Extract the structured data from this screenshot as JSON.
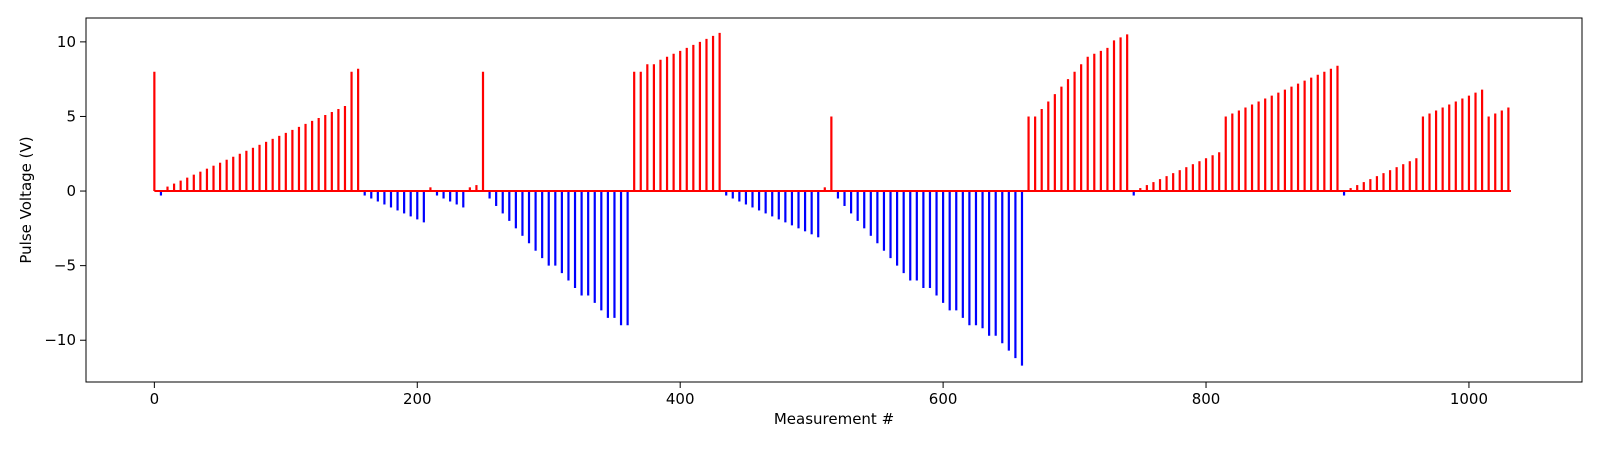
{
  "chart_data": {
    "type": "bar",
    "title": "",
    "xlabel": "Measurement #",
    "ylabel": "Pulse Voltage (V)",
    "xlim": [
      -52,
      1086
    ],
    "ylim": [
      -12.8,
      11.6
    ],
    "xticks": [
      0,
      200,
      400,
      600,
      800,
      1000
    ],
    "yticks": [
      -10,
      -5,
      0,
      5,
      10
    ],
    "grid": false,
    "legend": "none",
    "colors": {
      "positive": "#ff0000",
      "negative": "#0000ff",
      "baseline": "#ff0000"
    },
    "baseline": {
      "x_start": 0,
      "x_end": 1032,
      "y": 0
    },
    "x": [
      0,
      5,
      10,
      15,
      20,
      25,
      30,
      35,
      40,
      45,
      50,
      55,
      60,
      65,
      70,
      75,
      80,
      85,
      90,
      95,
      100,
      105,
      110,
      115,
      120,
      125,
      130,
      135,
      140,
      145,
      150,
      155,
      160,
      165,
      170,
      175,
      180,
      185,
      190,
      195,
      200,
      205,
      210,
      215,
      220,
      225,
      230,
      235,
      240,
      245,
      250,
      255,
      260,
      265,
      270,
      275,
      280,
      285,
      290,
      295,
      300,
      305,
      310,
      315,
      320,
      325,
      330,
      335,
      340,
      345,
      350,
      355,
      360,
      365,
      370,
      375,
      380,
      385,
      390,
      395,
      400,
      405,
      410,
      415,
      420,
      425,
      430,
      435,
      440,
      445,
      450,
      455,
      460,
      465,
      470,
      475,
      480,
      485,
      490,
      495,
      500,
      505,
      510,
      515,
      520,
      525,
      530,
      535,
      540,
      545,
      550,
      555,
      560,
      565,
      570,
      575,
      580,
      585,
      590,
      595,
      600,
      605,
      610,
      615,
      620,
      625,
      630,
      635,
      640,
      645,
      650,
      655,
      660,
      665,
      670,
      675,
      680,
      685,
      690,
      695,
      700,
      705,
      710,
      715,
      720,
      725,
      730,
      735,
      740,
      745,
      750,
      755,
      760,
      765,
      770,
      775,
      780,
      785,
      790,
      795,
      800,
      805,
      810,
      815,
      820,
      825,
      830,
      835,
      840,
      845,
      850,
      855,
      860,
      865,
      870,
      875,
      880,
      885,
      890,
      895,
      900,
      905,
      910,
      915,
      920,
      925,
      930,
      935,
      940,
      945,
      950,
      955,
      960,
      965,
      970,
      975,
      980,
      985,
      990,
      995,
      1000,
      1005,
      1010,
      1015,
      1020,
      1025,
      1030
    ],
    "values": [
      8.0,
      -0.3,
      0.3,
      0.5,
      0.7,
      0.9,
      1.1,
      1.3,
      1.5,
      1.7,
      1.9,
      2.1,
      2.3,
      2.5,
      2.7,
      2.9,
      3.1,
      3.3,
      3.5,
      3.7,
      3.9,
      4.1,
      4.3,
      4.5,
      4.7,
      4.9,
      5.1,
      5.3,
      5.5,
      5.7,
      8.0,
      8.2,
      -0.3,
      -0.5,
      -0.7,
      -0.9,
      -1.1,
      -1.3,
      -1.5,
      -1.7,
      -1.9,
      -2.1,
      0.25,
      -0.3,
      -0.5,
      -0.7,
      -0.9,
      -1.1,
      0.25,
      0.4,
      8.0,
      -0.5,
      -1.0,
      -1.5,
      -2.0,
      -2.5,
      -3.0,
      -3.5,
      -4.0,
      -4.5,
      -5.0,
      -5.0,
      -5.5,
      -6.0,
      -6.5,
      -7.0,
      -7.0,
      -7.5,
      -8.0,
      -8.5,
      -8.5,
      -9.0,
      -9.0,
      8.0,
      8.0,
      8.5,
      8.5,
      8.8,
      9.0,
      9.2,
      9.4,
      9.6,
      9.8,
      10.0,
      10.2,
      10.4,
      10.6,
      -0.3,
      -0.5,
      -0.7,
      -0.9,
      -1.1,
      -1.3,
      -1.5,
      -1.7,
      -1.9,
      -2.1,
      -2.3,
      -2.5,
      -2.7,
      -2.9,
      -3.1,
      0.25,
      5.0,
      -0.5,
      -1.0,
      -1.5,
      -2.0,
      -2.5,
      -3.0,
      -3.5,
      -4.0,
      -4.5,
      -5.0,
      -5.5,
      -6.0,
      -6.0,
      -6.5,
      -6.5,
      -7.0,
      -7.5,
      -8.0,
      -8.0,
      -8.5,
      -9.0,
      -9.0,
      -9.2,
      -9.7,
      -9.7,
      -10.2,
      -10.7,
      -11.2,
      -11.7,
      5.0,
      5.0,
      5.5,
      6.0,
      6.5,
      7.0,
      7.5,
      8.0,
      8.5,
      9.0,
      9.2,
      9.4,
      9.6,
      10.1,
      10.3,
      10.5,
      -0.3,
      0.2,
      0.4,
      0.6,
      0.8,
      1.0,
      1.2,
      1.4,
      1.6,
      1.8,
      2.0,
      2.2,
      2.4,
      2.6,
      5.0,
      5.2,
      5.4,
      5.6,
      5.8,
      6.0,
      6.2,
      6.4,
      6.6,
      6.8,
      7.0,
      7.2,
      7.4,
      7.6,
      7.8,
      8.0,
      8.2,
      8.4,
      -0.3,
      0.2,
      0.4,
      0.6,
      0.8,
      1.0,
      1.2,
      1.4,
      1.6,
      1.8,
      2.0,
      2.2,
      5.0,
      5.2,
      5.4,
      5.6,
      5.8,
      6.0,
      6.2,
      6.4,
      6.6,
      6.8,
      5.0,
      5.2,
      5.4,
      5.6
    ]
  }
}
